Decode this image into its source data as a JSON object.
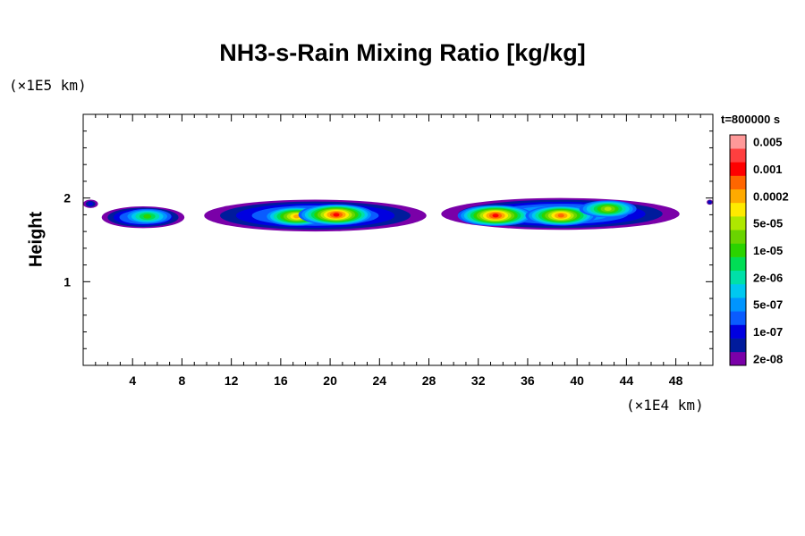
{
  "chart_data": {
    "type": "heatmap",
    "title": "NH3-s-Rain Mixing Ratio [kg/kg]",
    "ylabel": "Height",
    "x_unit_label": "(×1E4 km)",
    "y_unit_label": "(×1E5 km)",
    "time_label": "t=800000 s",
    "xlim": [
      0,
      51
    ],
    "ylim": [
      0,
      3
    ],
    "x_ticks": [
      "4",
      "8",
      "12",
      "16",
      "20",
      "24",
      "28",
      "32",
      "36",
      "40",
      "44",
      "48"
    ],
    "y_ticks": [
      "1",
      "2"
    ],
    "colorbar": {
      "colors": [
        "#7a00a8",
        "#001b9c",
        "#0000e0",
        "#0a5cff",
        "#0095ff",
        "#00c8f0",
        "#00e0a8",
        "#00dd55",
        "#2bd300",
        "#6ad400",
        "#aee800",
        "#ffea00",
        "#ffaa00",
        "#ff6600",
        "#ff0000",
        "#ff3f3f",
        "#ff9999"
      ],
      "labels": [
        "2e-08",
        "1e-07",
        "5e-07",
        "2e-06",
        "1e-05",
        "5e-05",
        "0.0002",
        "0.001",
        "0.005"
      ]
    },
    "regions": [
      {
        "x_start": 0,
        "x_end": 1.2,
        "y_bottom": 1.88,
        "y_top": 1.98,
        "peak": 2
      },
      {
        "x_start": 1.5,
        "x_end": 8.2,
        "y_bottom": 1.64,
        "y_top": 1.9,
        "peak": 7
      },
      {
        "x_start": 9.8,
        "x_end": 27.8,
        "y_bottom": 1.6,
        "y_top": 1.98,
        "peak": 14
      },
      {
        "x_start": 29,
        "x_end": 48.3,
        "y_bottom": 1.62,
        "y_top": 2.0,
        "peak": 14
      },
      {
        "x_start": 50.5,
        "x_end": 51,
        "y_bottom": 1.92,
        "y_top": 1.98,
        "peak": 2
      }
    ],
    "hotspots": [
      {
        "x": 17.3,
        "y": 1.78,
        "peak": 12
      },
      {
        "x": 20.5,
        "y": 1.8,
        "peak": 14
      },
      {
        "x": 33.4,
        "y": 1.79,
        "peak": 14
      },
      {
        "x": 38.7,
        "y": 1.79,
        "peak": 13
      },
      {
        "x": 42.5,
        "y": 1.87,
        "peak": 10
      },
      {
        "x": 5.2,
        "y": 1.78,
        "peak": 8
      }
    ]
  }
}
